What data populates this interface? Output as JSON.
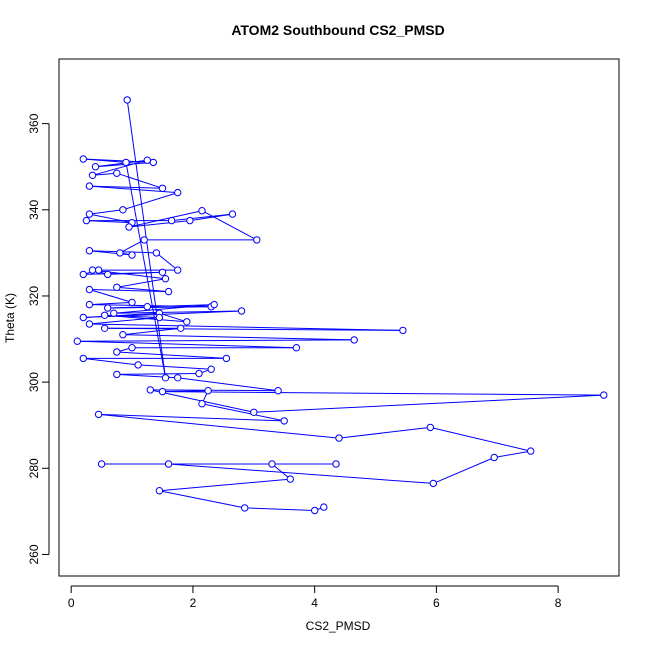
{
  "chart_data": {
    "type": "line",
    "title": "ATOM2 Southbound CS2_PMSD",
    "xlabel": "CS2_PMSD",
    "ylabel": "Theta (K)",
    "xlim": [
      -0.2,
      9.0
    ],
    "ylim": [
      255,
      375
    ],
    "xticks": [
      0,
      2,
      4,
      6,
      8
    ],
    "yticks": [
      260,
      280,
      300,
      320,
      340,
      360
    ],
    "grid": false,
    "legend": "none",
    "line_color": "#0000ff",
    "marker": "open-circle",
    "series": [
      {
        "points": [
          [
            0.92,
            365.5
          ],
          [
            1.55,
            301
          ],
          [
            0.9,
            351
          ],
          [
            0.2,
            351.8
          ],
          [
            1.35,
            351
          ],
          [
            0.4,
            350
          ],
          [
            1.25,
            351.5
          ],
          [
            0.35,
            348
          ],
          [
            0.75,
            348.5
          ],
          [
            1.5,
            345
          ],
          [
            0.3,
            345.5
          ],
          [
            1.75,
            344
          ],
          [
            0.85,
            340
          ],
          [
            0.3,
            339
          ],
          [
            1.0,
            337
          ],
          [
            0.25,
            337.5
          ],
          [
            1.65,
            337.5
          ],
          [
            2.65,
            339
          ],
          [
            1.95,
            337.5
          ],
          [
            0.95,
            336
          ],
          [
            2.15,
            339.8
          ],
          [
            3.05,
            333
          ],
          [
            1.2,
            333
          ],
          [
            0.8,
            330
          ],
          [
            1.0,
            329.5
          ],
          [
            0.3,
            330.5
          ],
          [
            1.4,
            330
          ],
          [
            1.75,
            326
          ],
          [
            0.45,
            326
          ],
          [
            0.2,
            325
          ],
          [
            1.5,
            325.5
          ],
          [
            0.6,
            325
          ],
          [
            0.35,
            326
          ],
          [
            1.55,
            324
          ],
          [
            0.75,
            322
          ],
          [
            1.6,
            321
          ],
          [
            0.3,
            321.5
          ],
          [
            1.0,
            318.5
          ],
          [
            0.3,
            318
          ],
          [
            2.3,
            317.5
          ],
          [
            0.6,
            317.2
          ],
          [
            1.25,
            317.5
          ],
          [
            2.35,
            318
          ],
          [
            0.7,
            316
          ],
          [
            2.8,
            316.5
          ],
          [
            0.2,
            315
          ],
          [
            1.45,
            316
          ],
          [
            1.9,
            314
          ],
          [
            0.55,
            315.5
          ],
          [
            1.45,
            315
          ],
          [
            0.3,
            313.5
          ],
          [
            5.45,
            312
          ],
          [
            0.55,
            312.5
          ],
          [
            1.8,
            312.5
          ],
          [
            0.85,
            311
          ],
          [
            4.65,
            309.8
          ],
          [
            0.1,
            309.5
          ],
          [
            3.7,
            308
          ],
          [
            1.0,
            308
          ],
          [
            0.75,
            307
          ],
          [
            2.55,
            305.5
          ],
          [
            0.2,
            305.5
          ],
          [
            1.1,
            304
          ],
          [
            2.3,
            303
          ],
          [
            2.1,
            302
          ],
          [
            0.75,
            301.8
          ],
          [
            1.75,
            301
          ],
          [
            3.4,
            298
          ],
          [
            1.3,
            298.2
          ],
          [
            3.0,
            293
          ],
          [
            8.75,
            297
          ],
          [
            1.5,
            297.8
          ],
          [
            2.25,
            298
          ],
          [
            2.15,
            295
          ],
          [
            3.5,
            291
          ],
          [
            0.45,
            292.5
          ],
          [
            4.4,
            287
          ],
          [
            5.9,
            289.5
          ],
          [
            7.55,
            284
          ],
          [
            6.95,
            282.5
          ],
          [
            5.95,
            276.5
          ],
          [
            1.6,
            281
          ],
          [
            0.5,
            281
          ],
          [
            4.35,
            281
          ],
          [
            3.3,
            281
          ],
          [
            3.6,
            277.5
          ],
          [
            1.45,
            274.8
          ],
          [
            2.85,
            270.8
          ],
          [
            4.0,
            270.2
          ],
          [
            4.15,
            271
          ]
        ]
      }
    ]
  }
}
